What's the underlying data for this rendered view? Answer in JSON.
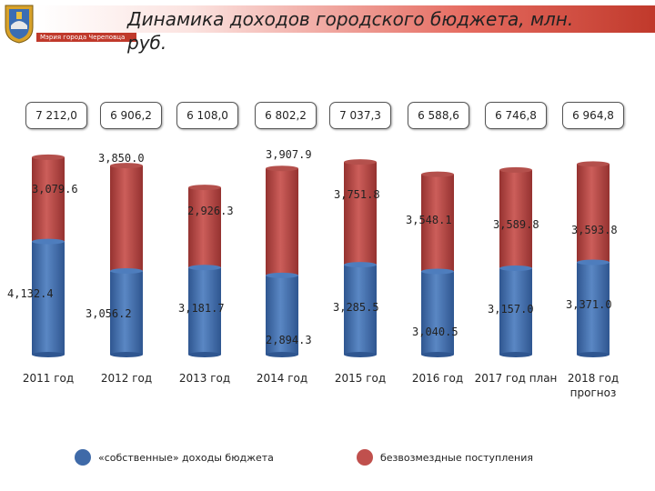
{
  "header": {
    "title_line1": "Динамика доходов городского бюджета, млн.",
    "title_line2": "руб.",
    "org_label": "Мэрия города Череповца"
  },
  "totals": [
    "7 212,0",
    "6 906,2",
    "6 108,0",
    "6 802,2",
    "7 037,3",
    "6 588,6",
    "6 746,8",
    "6 964,8"
  ],
  "colors": {
    "own": "#4a77b4",
    "grants": "#c0504d",
    "banner": "#c0392b"
  },
  "chart_data": {
    "type": "bar",
    "stacked": true,
    "categories": [
      "2011 год",
      "2012 год",
      "2013 год",
      "2014 год",
      "2015 год",
      "2016 год",
      "2017 год план",
      "2018 год прогноз"
    ],
    "series": [
      {
        "name": "«собственные» доходы бюджета",
        "color": "#4a77b4",
        "values": [
          4132.4,
          3056.2,
          3181.7,
          2894.3,
          3285.5,
          3040.5,
          3157.0,
          3371.0
        ],
        "labels": [
          "4,132.4",
          "3,056.2",
          "3,181.7",
          "2,894.3",
          "3,285.5",
          "3,040.5",
          "3,157.0",
          "3,371.0"
        ]
      },
      {
        "name": "безвозмездные поступления",
        "color": "#c0504d",
        "values": [
          3079.6,
          3850.0,
          2926.3,
          3907.9,
          3751.8,
          3548.1,
          3589.8,
          3593.8
        ],
        "labels": [
          "3,079.6",
          "3,850.0",
          "2,926.3",
          "3,907.9",
          "3,751.8",
          "3,548.1",
          "3,589.8",
          "3,593.8"
        ]
      }
    ],
    "legend_position": "bottom",
    "grid": false
  }
}
